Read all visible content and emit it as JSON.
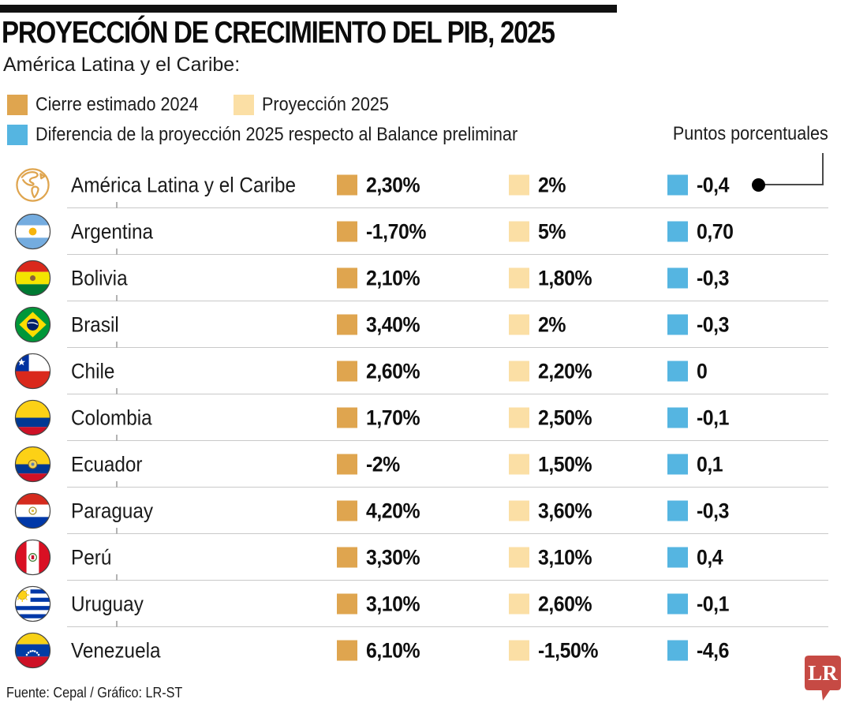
{
  "header": {
    "title": "PROYECCIÓN DE CRECIMIENTO DEL PIB, 2025",
    "subtitle": "América Latina y el Caribe:",
    "legend": [
      {
        "label": "Cierre estimado 2024"
      },
      {
        "label": "Proyección 2025"
      },
      {
        "label": "Diferencia de la proyección 2025 respecto al Balance preliminar"
      }
    ],
    "units_label": "Puntos porcentuales"
  },
  "colors": {
    "cierre": "#DFA54F",
    "proyeccion": "#FBDFA5",
    "diferencia": "#55B5E1",
    "accent_bar": "#111111",
    "lr_red": "#C64A44"
  },
  "rows": [
    {
      "flag": "globe",
      "name": "América Latina y el Caribe",
      "cierre": "2,30%",
      "proyeccion": "2%",
      "diferencia": "-0,4"
    },
    {
      "flag": "argentina",
      "name": "Argentina",
      "cierre": "-1,70%",
      "proyeccion": "5%",
      "diferencia": "0,70"
    },
    {
      "flag": "bolivia",
      "name": "Bolivia",
      "cierre": "2,10%",
      "proyeccion": "1,80%",
      "diferencia": "-0,3"
    },
    {
      "flag": "brasil",
      "name": "Brasil",
      "cierre": "3,40%",
      "proyeccion": "2%",
      "diferencia": "-0,3"
    },
    {
      "flag": "chile",
      "name": "Chile",
      "cierre": "2,60%",
      "proyeccion": "2,20%",
      "diferencia": "0"
    },
    {
      "flag": "colombia",
      "name": "Colombia",
      "cierre": "1,70%",
      "proyeccion": "2,50%",
      "diferencia": "-0,1"
    },
    {
      "flag": "ecuador",
      "name": "Ecuador",
      "cierre": "-2%",
      "proyeccion": "1,50%",
      "diferencia": "0,1"
    },
    {
      "flag": "paraguay",
      "name": "Paraguay",
      "cierre": "4,20%",
      "proyeccion": "3,60%",
      "diferencia": "-0,3"
    },
    {
      "flag": "peru",
      "name": "Perú",
      "cierre": "3,30%",
      "proyeccion": "3,10%",
      "diferencia": "0,4"
    },
    {
      "flag": "uruguay",
      "name": "Uruguay",
      "cierre": "3,10%",
      "proyeccion": "2,60%",
      "diferencia": "-0,1"
    },
    {
      "flag": "venezuela",
      "name": "Venezuela",
      "cierre": "6,10%",
      "proyeccion": "-1,50%",
      "diferencia": "-4,6"
    }
  ],
  "chart_data": {
    "type": "table",
    "title": "Proyección de crecimiento del PIB, 2025",
    "region": "América Latina y el Caribe",
    "categories": [
      "América Latina y el Caribe",
      "Argentina",
      "Bolivia",
      "Brasil",
      "Chile",
      "Colombia",
      "Ecuador",
      "Paraguay",
      "Perú",
      "Uruguay",
      "Venezuela"
    ],
    "series": [
      {
        "name": "Cierre estimado 2024 (%)",
        "values": [
          2.3,
          -1.7,
          2.1,
          3.4,
          2.6,
          1.7,
          -2,
          4.2,
          3.3,
          3.1,
          6.1
        ]
      },
      {
        "name": "Proyección 2025 (%)",
        "values": [
          2,
          5,
          1.8,
          2,
          2.2,
          2.5,
          1.5,
          3.6,
          3.1,
          2.6,
          -1.5
        ]
      },
      {
        "name": "Diferencia de la proyección 2025 respecto al Balance preliminar (puntos porcentuales)",
        "values": [
          -0.4,
          0.7,
          -0.3,
          -0.3,
          0,
          -0.1,
          0.1,
          -0.3,
          0.4,
          -0.1,
          -4.6
        ]
      }
    ]
  },
  "footer": {
    "source": "Fuente: Cepal / Gráfico: LR-ST",
    "logo": "LR"
  }
}
